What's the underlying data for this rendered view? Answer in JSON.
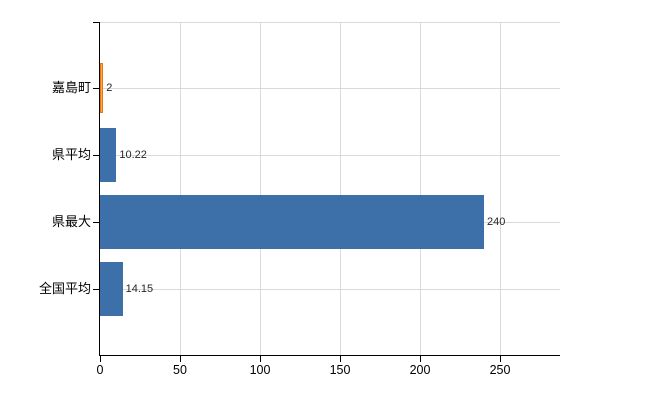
{
  "chart_data": {
    "type": "bar",
    "orientation": "horizontal",
    "categories": [
      "嘉島町",
      "県平均",
      "県最大",
      "全国平均"
    ],
    "values": [
      2,
      10.22,
      240,
      14.15
    ],
    "value_labels": [
      "2",
      "10.22",
      "240",
      "14.15"
    ],
    "x_ticks": [
      0,
      50,
      100,
      150,
      200,
      250
    ],
    "x_tick_labels": [
      "0",
      "50",
      "100",
      "150",
      "200",
      "250"
    ],
    "xlim": [
      0,
      287.5
    ],
    "grid": true,
    "legend": "none",
    "title": "",
    "bar_fills": [
      "#FFA447",
      "#3D6FA8",
      "#3D6FA8",
      "#3D6FA8"
    ],
    "bar_borders": [
      "#E8770D",
      null,
      null,
      null
    ],
    "colors": {
      "bar_blue": "#3D6FA8",
      "bar_orange_fill": "#FFA447",
      "bar_orange_border": "#E8770D",
      "gridline": "#D9D9D9",
      "axis": "#000000",
      "category_label": "#000000",
      "x_tick_label": "#000000",
      "value_label": "#262626",
      "background": "#FFFFFF"
    }
  }
}
